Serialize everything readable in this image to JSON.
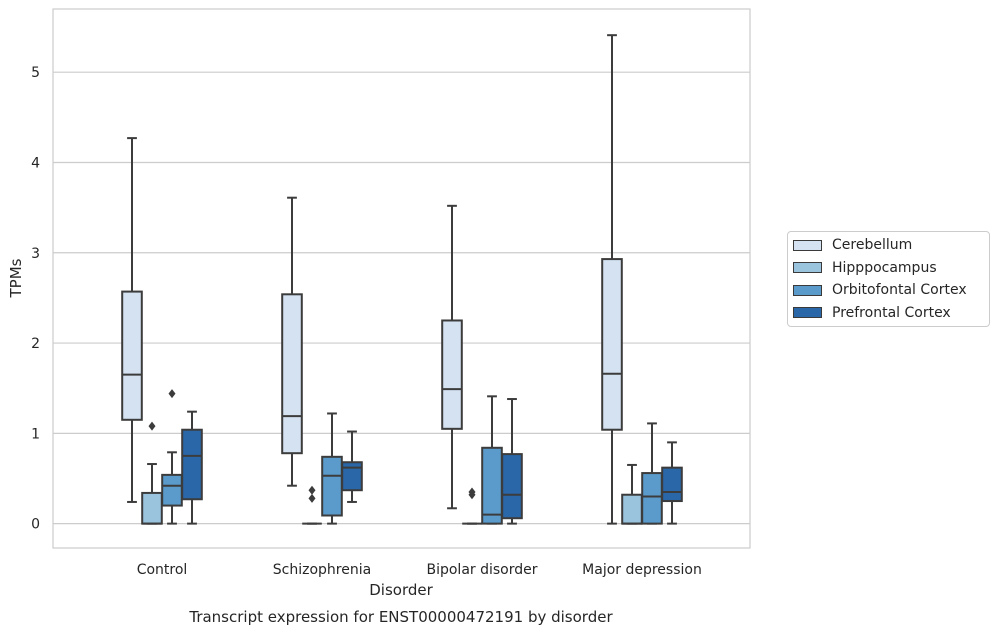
{
  "chart_data": {
    "type": "box",
    "title": "Transcript expression for ENST00000472191 by disorder",
    "xlabel": "Disorder",
    "ylabel": "TPMs",
    "categories": [
      "Control",
      "Schizophrenia",
      "Bipolar disorder",
      "Major depression"
    ],
    "yticks": [
      "0",
      "1",
      "2",
      "3",
      "4",
      "5"
    ],
    "ylim": [
      -0.27,
      5.7
    ],
    "grid": "horizontal",
    "legend_position": "right",
    "series": [
      {
        "name": "Cerebellum",
        "color": "#d4e2f1",
        "boxes": [
          {
            "min": 0.24,
            "q1": 1.15,
            "median": 1.65,
            "q3": 2.57,
            "max": 4.27,
            "outliers": []
          },
          {
            "min": 0.42,
            "q1": 0.78,
            "median": 1.19,
            "q3": 2.54,
            "max": 3.61,
            "outliers": []
          },
          {
            "min": 0.17,
            "q1": 1.05,
            "median": 1.49,
            "q3": 2.25,
            "max": 3.52,
            "outliers": []
          },
          {
            "min": 0.0,
            "q1": 1.04,
            "median": 1.66,
            "q3": 2.93,
            "max": 5.41,
            "outliers": []
          }
        ]
      },
      {
        "name": "Hipppocampus",
        "color": "#9ac3de",
        "boxes": [
          {
            "min": 0.0,
            "q1": 0.0,
            "median": 0.0,
            "q3": 0.34,
            "max": 0.66,
            "outliers": [
              1.08
            ]
          },
          {
            "min": 0.0,
            "q1": 0.0,
            "median": 0.0,
            "q3": 0.0,
            "max": 0.0,
            "outliers": [
              0.37,
              0.28
            ]
          },
          {
            "min": 0.0,
            "q1": 0.0,
            "median": 0.0,
            "q3": 0.0,
            "max": 0.0,
            "outliers": [
              0.35,
              0.32
            ]
          },
          {
            "min": 0.0,
            "q1": 0.0,
            "median": 0.0,
            "q3": 0.32,
            "max": 0.65,
            "outliers": []
          }
        ]
      },
      {
        "name": "Orbitofontal Cortex",
        "color": "#5a9bcb",
        "boxes": [
          {
            "min": 0.0,
            "q1": 0.2,
            "median": 0.42,
            "q3": 0.54,
            "max": 0.79,
            "outliers": [
              1.44
            ]
          },
          {
            "min": 0.0,
            "q1": 0.09,
            "median": 0.53,
            "q3": 0.74,
            "max": 1.22,
            "outliers": []
          },
          {
            "min": 0.0,
            "q1": 0.0,
            "median": 0.1,
            "q3": 0.84,
            "max": 1.41,
            "outliers": []
          },
          {
            "min": 0.0,
            "q1": 0.0,
            "median": 0.3,
            "q3": 0.56,
            "max": 1.11,
            "outliers": []
          }
        ]
      },
      {
        "name": "Prefrontal Cortex",
        "color": "#2967a9",
        "boxes": [
          {
            "min": 0.0,
            "q1": 0.27,
            "median": 0.75,
            "q3": 1.04,
            "max": 1.24,
            "outliers": []
          },
          {
            "min": 0.24,
            "q1": 0.37,
            "median": 0.62,
            "q3": 0.68,
            "max": 1.02,
            "outliers": []
          },
          {
            "min": 0.0,
            "q1": 0.06,
            "median": 0.32,
            "q3": 0.77,
            "max": 1.38,
            "outliers": []
          },
          {
            "min": 0.0,
            "q1": 0.25,
            "median": 0.35,
            "q3": 0.62,
            "max": 0.9,
            "outliers": []
          }
        ]
      }
    ]
  }
}
